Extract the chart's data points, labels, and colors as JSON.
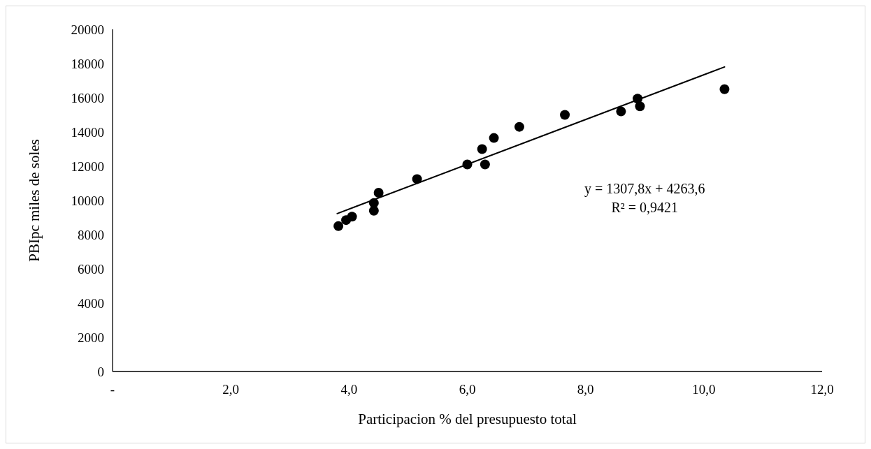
{
  "chart_data": {
    "type": "scatter",
    "xlabel": "Participacion % del presupuesto total",
    "ylabel": "PBIpc miles de soles",
    "xlim": [
      0,
      12
    ],
    "ylim": [
      0,
      20000
    ],
    "xticks": [
      {
        "value": 0,
        "label": "-"
      },
      {
        "value": 2,
        "label": "2,0"
      },
      {
        "value": 4,
        "label": "4,0"
      },
      {
        "value": 6,
        "label": "6,0"
      },
      {
        "value": 8,
        "label": "8,0"
      },
      {
        "value": 10,
        "label": "10,0"
      },
      {
        "value": 12,
        "label": "12,0"
      }
    ],
    "yticks": [
      0,
      2000,
      4000,
      6000,
      8000,
      10000,
      12000,
      14000,
      16000,
      18000,
      20000
    ],
    "grid": false,
    "series": [
      {
        "color": "#000000",
        "marker": "circle",
        "x": [
          3.82,
          3.95,
          4.05,
          4.42,
          4.42,
          4.5,
          5.15,
          6.0,
          6.25,
          6.3,
          6.45,
          6.88,
          7.65,
          8.6,
          8.88,
          8.92,
          10.35
        ],
        "values": [
          8500,
          8850,
          9050,
          9400,
          9850,
          10450,
          11250,
          12100,
          13000,
          12100,
          13650,
          14300,
          15000,
          15200,
          15950,
          15500,
          16500
        ]
      },
      {
        "type": "line",
        "color": "#000000",
        "x": [
          3.8,
          10.35
        ],
        "values": [
          9230,
          17800
        ],
        "line_style": "solid",
        "marker": "none"
      }
    ],
    "annotations": [
      "y = 1307,8x + 4263,6",
      "R² = 0,9421"
    ]
  }
}
